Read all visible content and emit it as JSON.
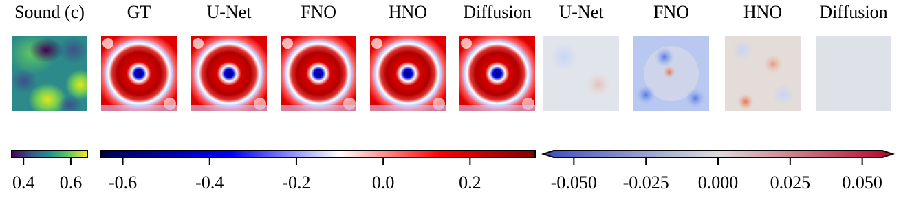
{
  "panels": [
    {
      "title": "Sound (c)"
    },
    {
      "title": "GT"
    },
    {
      "title": "U-Net"
    },
    {
      "title": "FNO"
    },
    {
      "title": "HNO"
    },
    {
      "title": "Diffusion"
    },
    {
      "title": "U-Net"
    },
    {
      "title": "FNO"
    },
    {
      "title": "HNO"
    },
    {
      "title": "Diffusion"
    }
  ],
  "colorbars": [
    {
      "xlim": [
        0.35,
        0.67
      ],
      "xticks": [
        0.4,
        0.6
      ]
    },
    {
      "xlim": [
        -0.65,
        0.35
      ],
      "xticks": [
        -0.6,
        -0.4,
        -0.2,
        {
          "value": 0,
          "label": "0.0"
        },
        0.2
      ]
    },
    {
      "xlim": [
        -0.057,
        0.057
      ],
      "xticks": [
        {
          "value": -0.05,
          "label": "-0.050"
        },
        {
          "value": -0.025,
          "label": "-0.025"
        },
        {
          "value": 0,
          "label": "0.000"
        },
        {
          "value": 0.025,
          "label": "0.025"
        },
        {
          "value": 0.05,
          "label": "0.050"
        }
      ]
    }
  ]
}
